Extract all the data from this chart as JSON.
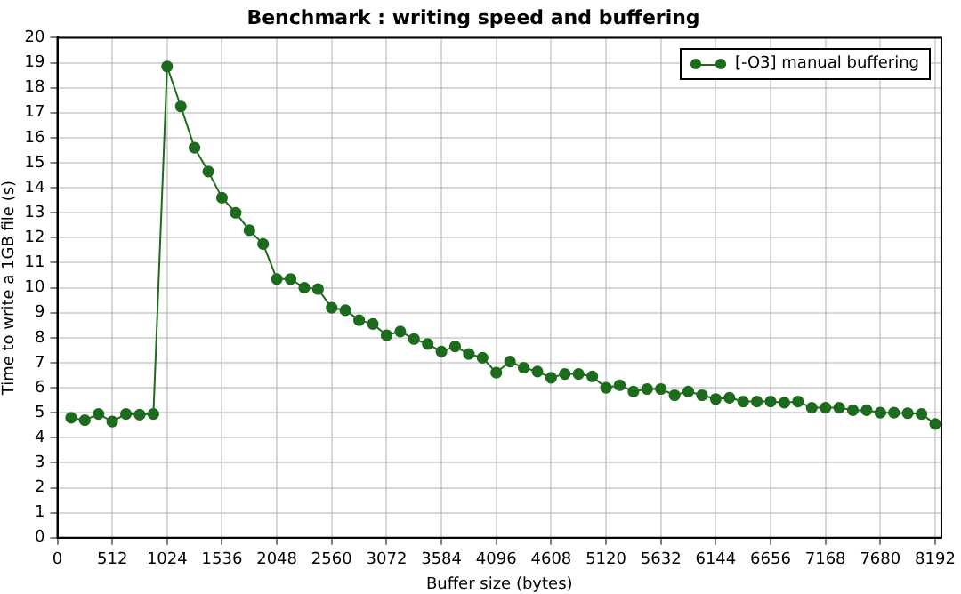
{
  "chart_data": {
    "type": "line",
    "title": "Benchmark : writing speed and buffering",
    "xlabel": "Buffer size (bytes)",
    "ylabel": "Time to write a 1GB file (s)",
    "x": [
      128,
      256,
      384,
      512,
      640,
      768,
      896,
      1024,
      1152,
      1280,
      1408,
      1536,
      1664,
      1792,
      1920,
      2048,
      2176,
      2304,
      2432,
      2560,
      2688,
      2816,
      2944,
      3072,
      3200,
      3328,
      3456,
      3584,
      3712,
      3840,
      3968,
      4096,
      4224,
      4352,
      4480,
      4608,
      4736,
      4864,
      4992,
      5120,
      5248,
      5376,
      5504,
      5632,
      5760,
      5888,
      6016,
      6144,
      6272,
      6400,
      6528,
      6656,
      6784,
      6912,
      7040,
      7168,
      7296,
      7424,
      7552,
      7680,
      7808,
      7936,
      8064,
      8192
    ],
    "series": [
      {
        "name": "[-O3] manual buffering",
        "color": "#1d6b1d",
        "values": [
          4.8,
          4.7,
          4.95,
          4.65,
          4.95,
          4.92,
          4.95,
          18.85,
          17.25,
          15.6,
          14.65,
          13.6,
          13.0,
          12.3,
          11.75,
          10.35,
          10.35,
          10.0,
          9.95,
          9.2,
          9.1,
          8.7,
          8.55,
          8.1,
          8.25,
          7.95,
          7.75,
          7.45,
          7.65,
          7.35,
          7.2,
          6.6,
          7.05,
          6.8,
          6.65,
          6.4,
          6.55,
          6.55,
          6.45,
          6.0,
          6.1,
          5.85,
          5.95,
          5.95,
          5.7,
          5.85,
          5.7,
          5.55,
          5.6,
          5.45,
          5.45,
          5.45,
          5.4,
          5.45,
          5.2,
          5.2,
          5.2,
          5.1,
          5.1,
          5.0,
          5.0,
          4.98,
          4.95,
          4.55
        ]
      }
    ],
    "xlim": [
      0,
      8250
    ],
    "xticks": [
      0,
      512,
      1024,
      1536,
      2048,
      2560,
      3072,
      3584,
      4096,
      4608,
      5120,
      5632,
      6144,
      6656,
      7168,
      7680,
      8192
    ],
    "ylim": [
      0,
      20
    ],
    "yticks": [
      0,
      1,
      2,
      3,
      4,
      5,
      6,
      7,
      8,
      9,
      10,
      11,
      12,
      13,
      14,
      15,
      16,
      17,
      18,
      19,
      20
    ],
    "grid": true,
    "legend": "top right",
    "marker": "circle",
    "line_style": "solid"
  }
}
